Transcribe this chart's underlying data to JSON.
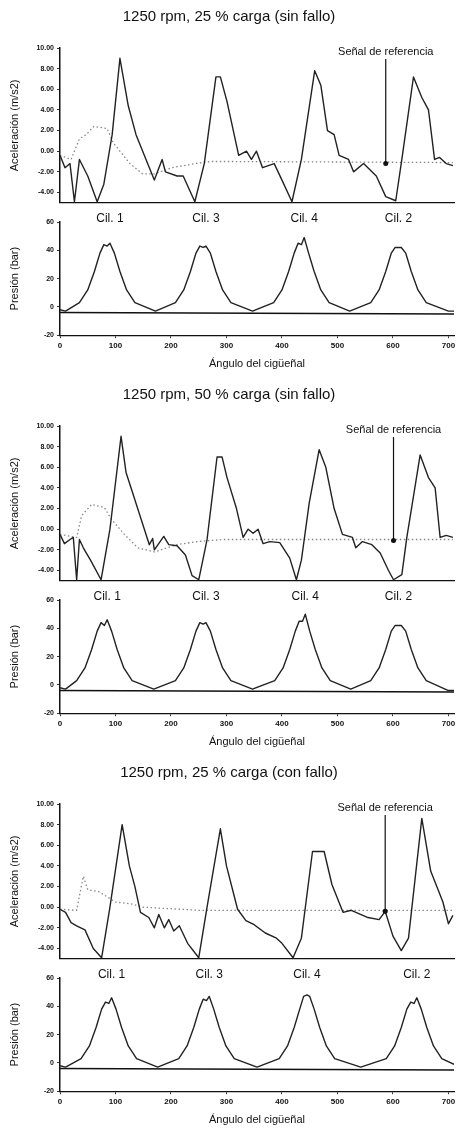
{
  "chart_data": [
    {
      "type": "line",
      "title": "1250 rpm, 25 % carga (sin fallo)",
      "ylabel": "Aceleración (m/s2)",
      "xlim": [
        0,
        710
      ],
      "xticks": [
        0,
        100,
        200,
        300,
        400,
        500,
        600,
        700
      ],
      "ylim": [
        -5,
        10
      ],
      "yticks": [
        {
          "value": -4,
          "label": "-4.00"
        },
        {
          "value": -2,
          "label": "-2.00"
        },
        {
          "value": 0,
          "label": "0.00"
        },
        {
          "value": 2,
          "label": "2.00"
        },
        {
          "value": 4,
          "label": "4.00"
        },
        {
          "value": 6,
          "label": "6.00"
        },
        {
          "value": 8,
          "label": "8.00"
        },
        {
          "value": 10,
          "label": "10.00"
        }
      ],
      "tick_labels": "y",
      "grid": false,
      "legend": false,
      "marker": "none",
      "annotations": [
        {
          "text": "Señal de referencia",
          "x": 587,
          "y": -1.2
        }
      ],
      "series": [
        {
          "color": "#222222",
          "line_style": "solid",
          "x": [
            0,
            9,
            18,
            26,
            35,
            50,
            67,
            79,
            94,
            108,
            123,
            137,
            161,
            170,
            184,
            190,
            211,
            222,
            243,
            260,
            281,
            289,
            301,
            322,
            336,
            345,
            354,
            365,
            386,
            400,
            418,
            435,
            459,
            470,
            482,
            494,
            503,
            520,
            529,
            547,
            570,
            587,
            605,
            616,
            637,
            652,
            664,
            675,
            684,
            696,
            708
          ],
          "values": [
            -0.4,
            -1.6,
            -1.2,
            -4.9,
            -0.8,
            -2.4,
            -4.9,
            -3.2,
            1.6,
            9,
            4.4,
            1.6,
            -1.6,
            -2.8,
            -0.8,
            -2,
            -2.4,
            -2.4,
            -4.9,
            -1.2,
            7.2,
            7.2,
            4.8,
            -0.4,
            0,
            -0.8,
            0,
            -1.6,
            -1.2,
            -2.8,
            -4.9,
            -0.8,
            7.8,
            6.4,
            2,
            1.6,
            -0.4,
            -0.8,
            -2,
            -1.2,
            -2.4,
            -4.4,
            -4.8,
            -0.8,
            7.2,
            5.2,
            4,
            -0.8,
            -0.6,
            -1.2,
            -1.4
          ]
        },
        {
          "color": "#888888",
          "line_style": "dotted",
          "x": [
            0,
            20,
            35,
            47,
            61,
            85,
            96,
            126,
            149,
            170,
            202,
            243,
            272,
            313,
            708
          ],
          "values": [
            -0.4,
            -0.8,
            1.2,
            1.6,
            2.4,
            2.2,
            0.8,
            -1.2,
            -2.2,
            -2.2,
            -1.6,
            -1.2,
            -1,
            -1,
            -1.1
          ]
        }
      ]
    },
    {
      "type": "line",
      "ylabel": "Presión (bar)",
      "xlabel": "Ángulo del cigüeñal",
      "xlim": [
        0,
        710
      ],
      "xticks": [
        0,
        100,
        200,
        300,
        400,
        500,
        600,
        700
      ],
      "ylim": [
        -20,
        60
      ],
      "yticks": [
        -20,
        0,
        20,
        40,
        60
      ],
      "grid": false,
      "legend": false,
      "marker": "none",
      "annotations": [
        {
          "text": "Cil. 1",
          "x": 90,
          "y": 45
        },
        {
          "text": "Cil. 3",
          "x": 263,
          "y": 43
        },
        {
          "text": "Cil. 4",
          "x": 440,
          "y": 49
        },
        {
          "text": "Cil. 2",
          "x": 610,
          "y": 42
        }
      ],
      "series": [
        {
          "color": "#222222",
          "line_style": "solid",
          "x": [
            0,
            10,
            35,
            50,
            62,
            72,
            79,
            85,
            90,
            98,
            108,
            120,
            135,
            172,
            208,
            223,
            235,
            245,
            252,
            258,
            263,
            271,
            281,
            293,
            308,
            347,
            385,
            400,
            412,
            422,
            429,
            435,
            440,
            448,
            458,
            470,
            485,
            522,
            560,
            575,
            587,
            597,
            604,
            610,
            615,
            623,
            633,
            645,
            660,
            700,
            710
          ],
          "values": [
            -2,
            -3,
            3,
            12,
            25,
            38,
            44,
            43,
            45,
            38,
            25,
            12,
            3,
            -3,
            3,
            12,
            25,
            38,
            43,
            42,
            43,
            38,
            25,
            12,
            3,
            -3,
            3,
            12,
            25,
            38,
            45,
            44,
            49,
            38,
            25,
            12,
            3,
            -3,
            3,
            12,
            25,
            38,
            42,
            42,
            42,
            38,
            25,
            12,
            3,
            -3,
            -3
          ]
        },
        {
          "color": "#111111",
          "line_style": "solid",
          "x": [
            0,
            710
          ],
          "values": [
            -4,
            -5
          ]
        }
      ]
    },
    {
      "type": "line",
      "title": "1250 rpm, 50 % carga (sin fallo)",
      "ylabel": "Aceleración (m/s2)",
      "xlim": [
        0,
        710
      ],
      "xticks": [
        0,
        100,
        200,
        300,
        400,
        500,
        600,
        700
      ],
      "ylim": [
        -5,
        10
      ],
      "yticks": [
        {
          "value": -4,
          "label": "-4.00"
        },
        {
          "value": -2,
          "label": "-2.00"
        },
        {
          "value": 0,
          "label": "0.00"
        },
        {
          "value": 2,
          "label": "2.00"
        },
        {
          "value": 4,
          "label": "4.00"
        },
        {
          "value": 6,
          "label": "6.00"
        },
        {
          "value": 8,
          "label": "8.00"
        },
        {
          "value": 10,
          "label": "10.00"
        }
      ],
      "tick_labels": "y",
      "grid": false,
      "legend": false,
      "marker": "none",
      "annotations": [
        {
          "text": "Señal de referencia",
          "x": 601,
          "y": -1.1
        }
      ],
      "series": [
        {
          "color": "#222222",
          "line_style": "solid",
          "x": [
            0,
            8,
            18,
            24,
            30,
            35,
            42,
            55,
            74,
            90,
            110,
            119,
            131,
            152,
            161,
            167,
            170,
            187,
            196,
            211,
            226,
            238,
            250,
            265,
            283,
            292,
            301,
            318,
            330,
            339,
            348,
            357,
            366,
            378,
            396,
            414,
            426,
            435,
            449,
            467,
            479,
            494,
            509,
            527,
            533,
            545,
            562,
            577,
            592,
            601,
            616,
            625,
            649,
            664,
            676,
            685,
            696,
            708
          ],
          "values": [
            -0.5,
            -1.4,
            -1,
            -0.8,
            -4.9,
            -1,
            -1.8,
            -3,
            -4.9,
            0,
            9,
            5.5,
            3.5,
            0,
            -1.5,
            -0.9,
            -2,
            -0.7,
            -1.5,
            -1.6,
            -2.5,
            -4.5,
            -4.9,
            -1,
            7,
            7,
            5,
            2,
            -0.8,
            0,
            -0.4,
            0,
            -1.4,
            -1.2,
            -1.3,
            -2.8,
            -4.9,
            -3,
            2.5,
            7.7,
            6,
            2,
            -0.5,
            -0.8,
            -1.8,
            -1.2,
            -1.5,
            -2.3,
            -4,
            -4.9,
            -4.4,
            -0.8,
            7.2,
            5,
            4,
            -0.8,
            -0.6,
            -0.8
          ]
        },
        {
          "color": "#888888",
          "line_style": "dotted",
          "x": [
            0,
            30,
            39,
            57,
            80,
            92,
            116,
            140,
            170,
            211,
            247,
            295,
            708
          ],
          "values": [
            -0.5,
            -0.8,
            1.3,
            2.4,
            2.1,
            1,
            -0.5,
            -1.8,
            -2.2,
            -1.5,
            -1.2,
            -1,
            -1
          ]
        }
      ]
    },
    {
      "type": "line",
      "ylabel": "Presión (bar)",
      "xlabel": "Ángulo del cigüeñal",
      "xlim": [
        0,
        710
      ],
      "xticks": [
        0,
        100,
        200,
        300,
        400,
        500,
        600,
        700
      ],
      "ylim": [
        -20,
        60
      ],
      "yticks": [
        -20,
        0,
        20,
        40,
        60
      ],
      "grid": false,
      "legend": false,
      "marker": "none",
      "annotations": [
        {
          "text": "Cil. 1",
          "x": 85,
          "y": 46
        },
        {
          "text": "Cil. 3",
          "x": 263,
          "y": 44
        },
        {
          "text": "Cil. 4",
          "x": 442,
          "y": 50
        },
        {
          "text": "Cil. 2",
          "x": 610,
          "y": 42
        }
      ],
      "series": [
        {
          "color": "#222222",
          "line_style": "solid",
          "x": [
            0,
            10,
            30,
            45,
            57,
            67,
            74,
            80,
            85,
            93,
            103,
            115,
            130,
            169,
            208,
            223,
            235,
            245,
            252,
            258,
            263,
            271,
            281,
            293,
            308,
            347,
            387,
            402,
            414,
            424,
            431,
            437,
            442,
            450,
            460,
            472,
            487,
            524,
            560,
            575,
            587,
            597,
            604,
            610,
            615,
            623,
            633,
            645,
            660,
            700,
            710
          ],
          "values": [
            -2,
            -3,
            3,
            12,
            25,
            38,
            44,
            42,
            46,
            38,
            25,
            12,
            3,
            -3,
            3,
            12,
            25,
            38,
            44,
            43,
            44,
            38,
            25,
            12,
            3,
            -3,
            3,
            12,
            25,
            38,
            45,
            45,
            50,
            38,
            25,
            12,
            3,
            -3,
            3,
            12,
            25,
            38,
            42,
            42,
            42,
            38,
            25,
            12,
            3,
            -4,
            -4
          ]
        },
        {
          "color": "#111111",
          "line_style": "solid",
          "x": [
            0,
            710
          ],
          "values": [
            -4,
            -5
          ]
        }
      ]
    },
    {
      "type": "line",
      "title": "1250 rpm, 25 % carga (con fallo)",
      "ylabel": "Aceleración (m/s2)",
      "xlim": [
        0,
        710
      ],
      "xticks": [
        0,
        100,
        200,
        300,
        400,
        500,
        600,
        700
      ],
      "ylim": [
        -5,
        10
      ],
      "yticks": [
        {
          "value": -4,
          "label": "-4.00"
        },
        {
          "value": -2,
          "label": "-2.00"
        },
        {
          "value": 0,
          "label": "0.00"
        },
        {
          "value": 2,
          "label": "2.00"
        },
        {
          "value": 4,
          "label": "4.00"
        },
        {
          "value": 6,
          "label": "6.00"
        },
        {
          "value": 8,
          "label": "8.00"
        },
        {
          "value": 10,
          "label": "10.00"
        }
      ],
      "tick_labels": "y",
      "grid": false,
      "legend": false,
      "marker": "none",
      "annotations": [
        {
          "text": "Señal de referencia",
          "x": 586,
          "y": -0.4
        }
      ],
      "series": [
        {
          "color": "#222222",
          "line_style": "solid",
          "x": [
            0,
            10,
            20,
            30,
            45,
            60,
            75,
            90,
            112,
            125,
            135,
            145,
            160,
            170,
            178,
            188,
            196,
            205,
            215,
            230,
            250,
            265,
            289,
            300,
            320,
            335,
            350,
            370,
            390,
            400,
            420,
            435,
            455,
            476,
            490,
            510,
            525,
            555,
            575,
            586,
            600,
            615,
            628,
            652,
            668,
            690,
            700,
            708
          ],
          "values": [
            -0.2,
            -0.5,
            -1.5,
            -1.8,
            -2.2,
            -4,
            -4.9,
            0,
            8,
            4,
            2,
            -0.5,
            -1,
            -2,
            -0.7,
            -2,
            -1.2,
            -2.3,
            -1.8,
            -3.5,
            -4.9,
            0,
            7.6,
            4,
            -0.2,
            -1.3,
            -1.7,
            -2.5,
            -3,
            -3.5,
            -4.9,
            -3,
            5.4,
            5.4,
            2.2,
            -0.5,
            -0.3,
            -1,
            -1.2,
            -0.4,
            -2.8,
            -4.2,
            -3,
            8.6,
            3.5,
            0.5,
            -1.6,
            -0.8
          ]
        },
        {
          "color": "#888888",
          "line_style": "dotted",
          "x": [
            0,
            30,
            42,
            50,
            70,
            100,
            130,
            150,
            250,
            708
          ],
          "values": [
            -0.2,
            -0.3,
            3,
            1.7,
            1.5,
            0.5,
            0.3,
            0,
            -0.3,
            -0.3
          ]
        }
      ]
    },
    {
      "type": "line",
      "ylabel": "Presión (bar)",
      "xlabel": "Ángulo del cigüeñal",
      "xlim": [
        0,
        710
      ],
      "xticks": [
        0,
        100,
        200,
        300,
        400,
        500,
        600,
        700
      ],
      "ylim": [
        -20,
        60
      ],
      "yticks": [
        -20,
        0,
        20,
        40,
        60
      ],
      "grid": false,
      "legend": false,
      "marker": "none",
      "annotations": [
        {
          "text": "Cil. 1",
          "x": 93,
          "y": 46
        },
        {
          "text": "Cil. 3",
          "x": 269,
          "y": 47
        },
        {
          "text": "Cil. 4",
          "x": 445,
          "y": 48
        },
        {
          "text": "Cil. 2",
          "x": 643,
          "y": 46
        }
      ],
      "series": [
        {
          "color": "#222222",
          "line_style": "solid",
          "x": [
            0,
            10,
            38,
            53,
            65,
            75,
            82,
            88,
            93,
            101,
            111,
            123,
            138,
            176,
            214,
            229,
            241,
            251,
            258,
            264,
            269,
            277,
            287,
            299,
            314,
            355,
            395,
            410,
            422,
            432,
            439,
            445,
            450,
            458,
            468,
            480,
            495,
            542,
            588,
            603,
            615,
            625,
            632,
            638,
            643,
            651,
            661,
            673,
            688,
            710
          ],
          "values": [
            -2,
            -3,
            3,
            12,
            25,
            38,
            43,
            42,
            46,
            38,
            25,
            12,
            3,
            -3,
            3,
            12,
            25,
            38,
            45,
            44,
            47,
            38,
            25,
            12,
            3,
            -3,
            3,
            12,
            25,
            38,
            47,
            48,
            47,
            38,
            25,
            12,
            3,
            -3,
            3,
            12,
            25,
            38,
            43,
            42,
            46,
            38,
            25,
            12,
            3,
            -1
          ]
        },
        {
          "color": "#111111",
          "line_style": "solid",
          "x": [
            0,
            710
          ],
          "values": [
            -4,
            -5
          ]
        }
      ]
    }
  ]
}
